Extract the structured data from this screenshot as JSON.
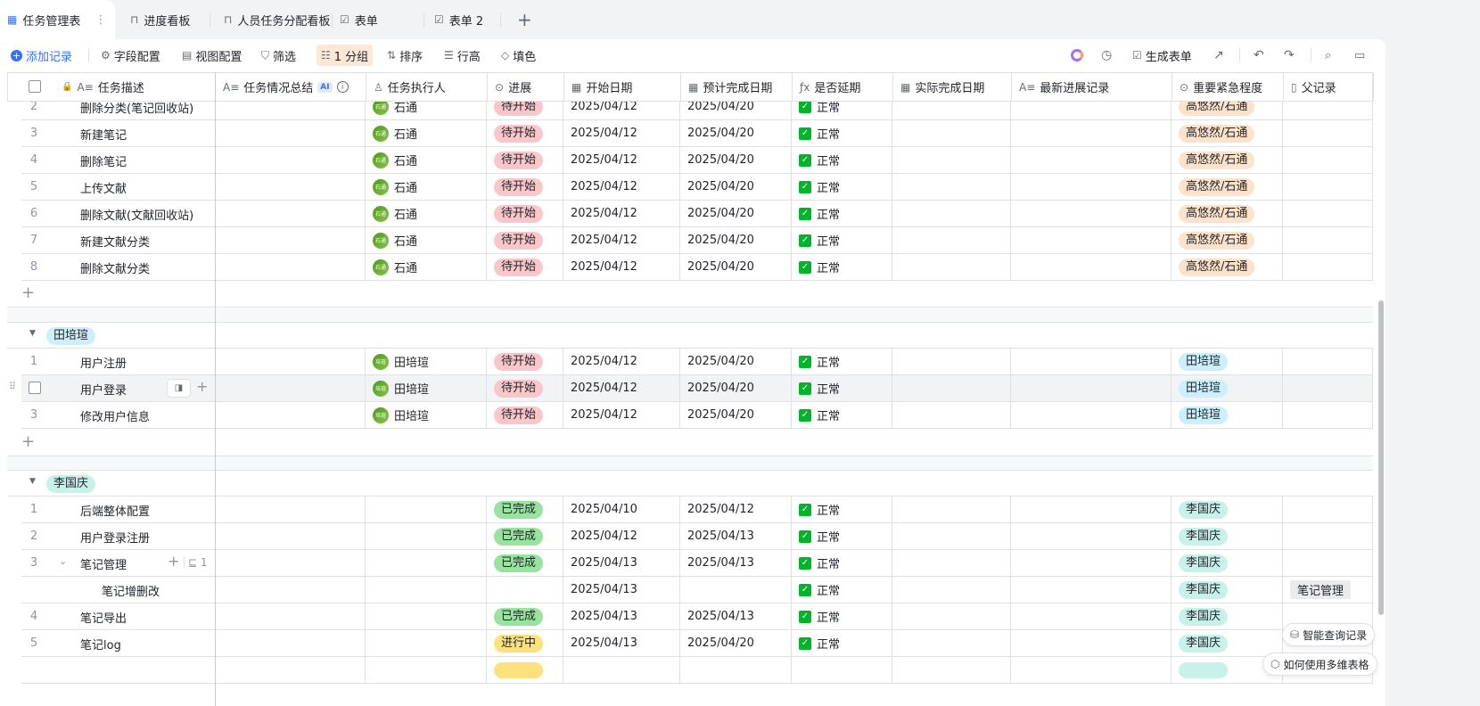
{
  "tabs": [
    {
      "label": "任务管理表",
      "icon": "grid-table-icon",
      "active": true
    },
    {
      "label": "进度看板",
      "icon": "kanban-icon"
    },
    {
      "label": "人员任务分配看板",
      "icon": "kanban-icon"
    },
    {
      "label": "表单",
      "icon": "form-icon"
    },
    {
      "label": "表单 2",
      "icon": "form-icon"
    }
  ],
  "toolbar": {
    "add_record": "添加记录",
    "field_config": "字段配置",
    "view_config": "视图配置",
    "filter": "筛选",
    "group": "1 分组",
    "sort": "排序",
    "row_height": "行高",
    "fill_color": "填色",
    "generate_form": "生成表单"
  },
  "columns": [
    {
      "label": "任务描述",
      "icon": "text-field-icon"
    },
    {
      "label": "任务情况总结",
      "icon": "text-field-icon",
      "badge": "AI"
    },
    {
      "label": "任务执行人",
      "icon": "person-icon"
    },
    {
      "label": "进展",
      "icon": "single-select-icon"
    },
    {
      "label": "开始日期",
      "icon": "calendar-icon"
    },
    {
      "label": "预计完成日期",
      "icon": "calendar-icon"
    },
    {
      "label": "是否延期",
      "icon": "formula-icon"
    },
    {
      "label": "实际完成日期",
      "icon": "calendar-icon"
    },
    {
      "label": "最新进展记录",
      "icon": "text-field-icon"
    },
    {
      "label": "重要紧急程度",
      "icon": "single-select-icon"
    },
    {
      "label": "父记录",
      "icon": "parent-link-icon"
    }
  ],
  "colors": {
    "pending": "#f9c6c9",
    "done": "#98e39d",
    "in_progress": "#fde17d",
    "group_shi": "#fde3cb",
    "group_tian": "#cdeefb",
    "group_li": "#c8f1ea",
    "accent": "#3370ff"
  },
  "groups": [
    {
      "name": "",
      "tag_color": "#fde3cb",
      "rows": [
        {
          "no": "2",
          "task": "删除分类(笔记回收站)",
          "executor": "石通",
          "avatar": "石通",
          "progress": "待开始",
          "progress_color": "#f9c6c9",
          "start": "2025/04/12",
          "due": "2025/04/20",
          "delayed": "正常",
          "priority": "高悠然/石通",
          "priority_color": "#fde3cb",
          "parent": ""
        },
        {
          "no": "3",
          "task": "新建笔记",
          "executor": "石通",
          "avatar": "石通",
          "progress": "待开始",
          "progress_color": "#f9c6c9",
          "start": "2025/04/12",
          "due": "2025/04/20",
          "delayed": "正常",
          "priority": "高悠然/石通",
          "priority_color": "#fde3cb",
          "parent": ""
        },
        {
          "no": "4",
          "task": "删除笔记",
          "executor": "石通",
          "avatar": "石通",
          "progress": "待开始",
          "progress_color": "#f9c6c9",
          "start": "2025/04/12",
          "due": "2025/04/20",
          "delayed": "正常",
          "priority": "高悠然/石通",
          "priority_color": "#fde3cb",
          "parent": ""
        },
        {
          "no": "5",
          "task": "上传文献",
          "executor": "石通",
          "avatar": "石通",
          "progress": "待开始",
          "progress_color": "#f9c6c9",
          "start": "2025/04/12",
          "due": "2025/04/20",
          "delayed": "正常",
          "priority": "高悠然/石通",
          "priority_color": "#fde3cb",
          "parent": ""
        },
        {
          "no": "6",
          "task": "删除文献(文献回收站)",
          "executor": "石通",
          "avatar": "石通",
          "progress": "待开始",
          "progress_color": "#f9c6c9",
          "start": "2025/04/12",
          "due": "2025/04/20",
          "delayed": "正常",
          "priority": "高悠然/石通",
          "priority_color": "#fde3cb",
          "parent": ""
        },
        {
          "no": "7",
          "task": "新建文献分类",
          "executor": "石通",
          "avatar": "石通",
          "progress": "待开始",
          "progress_color": "#f9c6c9",
          "start": "2025/04/12",
          "due": "2025/04/20",
          "delayed": "正常",
          "priority": "高悠然/石通",
          "priority_color": "#fde3cb",
          "parent": ""
        },
        {
          "no": "8",
          "task": "删除文献分类",
          "executor": "石通",
          "avatar": "石通",
          "progress": "待开始",
          "progress_color": "#f9c6c9",
          "start": "2025/04/12",
          "due": "2025/04/20",
          "delayed": "正常",
          "priority": "高悠然/石通",
          "priority_color": "#fde3cb",
          "parent": ""
        }
      ]
    },
    {
      "name": "田培瑄",
      "tag_color": "#cdeefb",
      "rows": [
        {
          "no": "1",
          "task": "用户注册",
          "executor": "田培瑄",
          "avatar": "培瑄",
          "progress": "待开始",
          "progress_color": "#f9c6c9",
          "start": "2025/04/12",
          "due": "2025/04/20",
          "delayed": "正常",
          "priority": "田培瑄",
          "priority_color": "#cdeefb",
          "parent": ""
        },
        {
          "no": "",
          "task": "用户登录",
          "executor": "田培瑄",
          "avatar": "培瑄",
          "progress": "待开始",
          "progress_color": "#f9c6c9",
          "start": "2025/04/12",
          "due": "2025/04/20",
          "delayed": "正常",
          "priority": "田培瑄",
          "priority_color": "#cdeefb",
          "parent": "",
          "hover": true
        },
        {
          "no": "3",
          "task": "修改用户信息",
          "executor": "田培瑄",
          "avatar": "培瑄",
          "progress": "待开始",
          "progress_color": "#f9c6c9",
          "start": "2025/04/12",
          "due": "2025/04/20",
          "delayed": "正常",
          "priority": "田培瑄",
          "priority_color": "#cdeefb",
          "parent": ""
        }
      ]
    },
    {
      "name": "李国庆",
      "tag_color": "#c8f1ea",
      "rows": [
        {
          "no": "1",
          "task": "后端整体配置",
          "executor": "",
          "progress": "已完成",
          "progress_color": "#98e39d",
          "start": "2025/04/10",
          "due": "2025/04/12",
          "delayed": "正常",
          "priority": "李国庆",
          "priority_color": "#c8f1ea",
          "parent": ""
        },
        {
          "no": "2",
          "task": "用户登录注册",
          "executor": "",
          "progress": "已完成",
          "progress_color": "#98e39d",
          "start": "2025/04/12",
          "due": "2025/04/13",
          "delayed": "正常",
          "priority": "李国庆",
          "priority_color": "#c8f1ea",
          "parent": ""
        },
        {
          "no": "3",
          "task": "笔记管理",
          "executor": "",
          "progress": "已完成",
          "progress_color": "#98e39d",
          "start": "2025/04/13",
          "due": "2025/04/13",
          "delayed": "正常",
          "priority": "李国庆",
          "priority_color": "#c8f1ea",
          "parent": "",
          "expanded": true,
          "child_count": "1"
        },
        {
          "no": "",
          "task": "笔记增删改",
          "executor": "",
          "progress": "",
          "start": "2025/04/13",
          "due": "",
          "delayed": "正常",
          "priority": "李国庆",
          "priority_color": "#c8f1ea",
          "parent": "笔记管理",
          "child": true
        },
        {
          "no": "4",
          "task": "笔记导出",
          "executor": "",
          "progress": "已完成",
          "progress_color": "#98e39d",
          "start": "2025/04/13",
          "due": "2025/04/13",
          "delayed": "正常",
          "priority": "李国庆",
          "priority_color": "#c8f1ea",
          "parent": ""
        },
        {
          "no": "5",
          "task": "笔记log",
          "executor": "",
          "progress": "进行中",
          "progress_color": "#fde17d",
          "start": "2025/04/13",
          "due": "2025/04/20",
          "delayed": "正常",
          "priority": "李国庆",
          "priority_color": "#c8f1ea",
          "parent": ""
        },
        {
          "no": "",
          "task": "",
          "executor": "",
          "progress": "",
          "progress_color": "#fde17d",
          "start": "",
          "due": "",
          "delayed": "",
          "priority": "",
          "priority_color": "#c8f1ea",
          "parent": "",
          "partial": true
        }
      ]
    }
  ],
  "floating": {
    "smart_query": "智能查询记录",
    "how_to_use": "如何使用多维表格"
  }
}
